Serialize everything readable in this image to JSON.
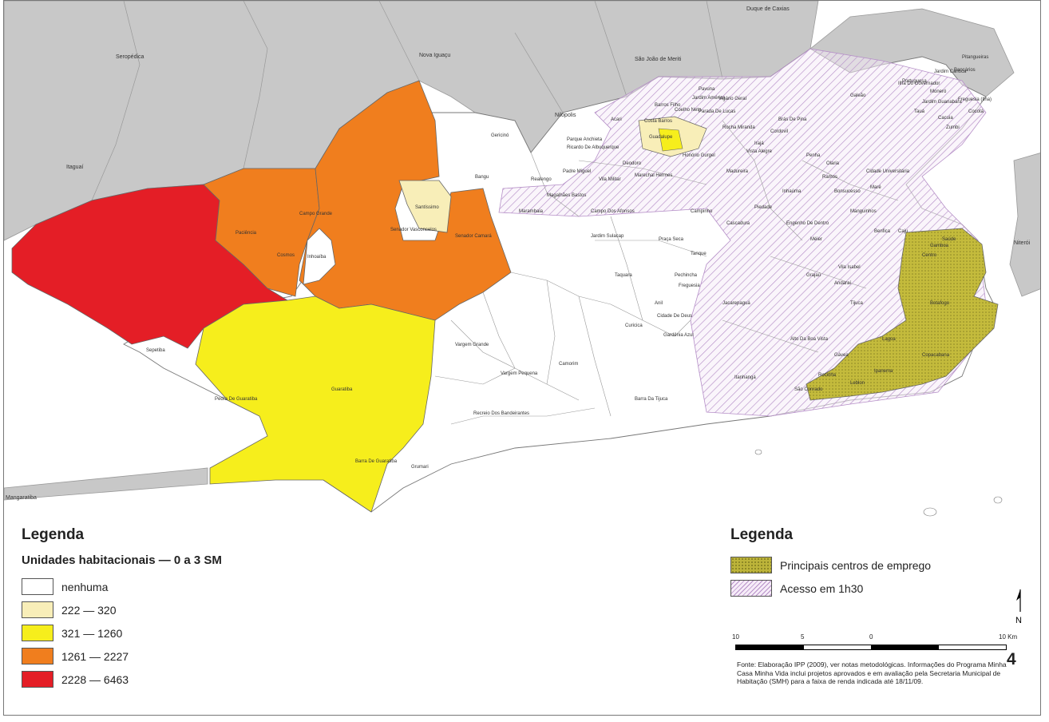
{
  "map": {
    "neighbor_municipalities": [
      "Duque de Caxias",
      "Seropédica",
      "Nova Iguaçu",
      "São João de Meriti",
      "Nilópolis",
      "Itaguaí",
      "Niterói"
    ],
    "places": [
      "Campo Grande",
      "Paciência",
      "Cosmos",
      "Inhoaíba",
      "Santíssimo",
      "Senador Vasconcelos",
      "Senador Camará",
      "Bangu",
      "Guaratiba",
      "Pedra De Guaratiba",
      "Barra De Guaratiba",
      "Grumari",
      "Sepetiba",
      "Vargem Grande",
      "Vargem Pequena",
      "Recreio Dos Bandeirantes",
      "Camorim",
      "Barra Da Tijuca",
      "Jacarepaguá",
      "Jardim Sulacap",
      "Campo Dos Afonsos",
      "Taquara",
      "Freguesia",
      "Marambaia",
      "Gericinó",
      "Guadalupe",
      "Deodoro",
      "Pechincha",
      "Anil",
      "Tanque",
      "Praça Seca",
      "Cidade De Deus",
      "Gardênia Azul",
      "Curicica",
      "Itanhangá",
      "Alto Da Boa Vista",
      "Magalhães Bastos",
      "Realengo",
      "Padre Miguel",
      "Vila Militar",
      "Marechal Hermes",
      "Madureira",
      "Penha",
      "Ilha Do Governador",
      "Galeão",
      "Centro",
      "Tijuca",
      "Méier",
      "Pavuna",
      "Acari",
      "Irajá",
      "Inhaúma",
      "Rocha Miranda",
      "Campinho",
      "Botafogo",
      "Copacabana",
      "Ipanema",
      "Leblon",
      "Gávea",
      "Lagoa",
      "Caju",
      "Saúde",
      "Gamboa",
      "São Conrado",
      "Rocinha",
      "Bonsucesso",
      "Ramos",
      "Olaria",
      "Maré",
      "Benfica",
      "Manguinhos",
      "Cascadura",
      "Piedade",
      "Engenho De Dentro",
      "Vila Isabel",
      "Grajaú",
      "Andaraí",
      "Jardim América",
      "Parada De Lucas",
      "Vigário Geral",
      "Cordovil",
      "Brás De Pina",
      "Vista Alegre",
      "Coelho Neto",
      "Barros Filho",
      "Costa Barros",
      "Honório Gurgel",
      "Ricardo De Albuquerque",
      "Parque Anchieta",
      "Tauá",
      "Portuguesa",
      "Bancários",
      "Freguesia (Ilha)",
      "Jardim Guanabara",
      "Cacuia",
      "Pitangueiras",
      "Zumbi",
      "Moneró",
      "Cocotá",
      "Jardim Carioca",
      "Cidade Universitária"
    ],
    "edge_labels": [
      "Mangaratiba"
    ]
  },
  "legend_left": {
    "title": "Legenda",
    "subtitle": "Unidades habitacionais — 0 a 3 SM",
    "classes": [
      {
        "label": "nenhuma",
        "color": "#ffffff"
      },
      {
        "label": "222 — 320",
        "color": "#f8eeb8"
      },
      {
        "label": "321 — 1260",
        "color": "#f6ee1c"
      },
      {
        "label": "1261 — 2227",
        "color": "#f07e1e"
      },
      {
        "label": "2228 — 6463",
        "color": "#e41e26"
      }
    ]
  },
  "legend_right": {
    "title": "Legenda",
    "items": [
      {
        "label": "Principais centros de emprego",
        "pattern": "stippled-olive"
      },
      {
        "label": "Acesso em 1h30",
        "pattern": "purple-hatch"
      }
    ]
  },
  "scale_bar": {
    "labels": [
      "10",
      "5",
      "0",
      "10 Km"
    ]
  },
  "north_arrow": {
    "label": "N"
  },
  "page_number": "4",
  "source_note": "Fonte: Elaboração IPP (2009), ver notas metodológicas. Informações do Programa Minha Casa Minha Vida inclui projetos aprovados e em avaliação pela Secretaria Municipal de Habitação (SMH) para a faixa de renda indicada até 18/11/09.",
  "colors": {
    "outside": "#c8c8c8",
    "employment": "#bdb43a",
    "access": "#b690c8"
  }
}
